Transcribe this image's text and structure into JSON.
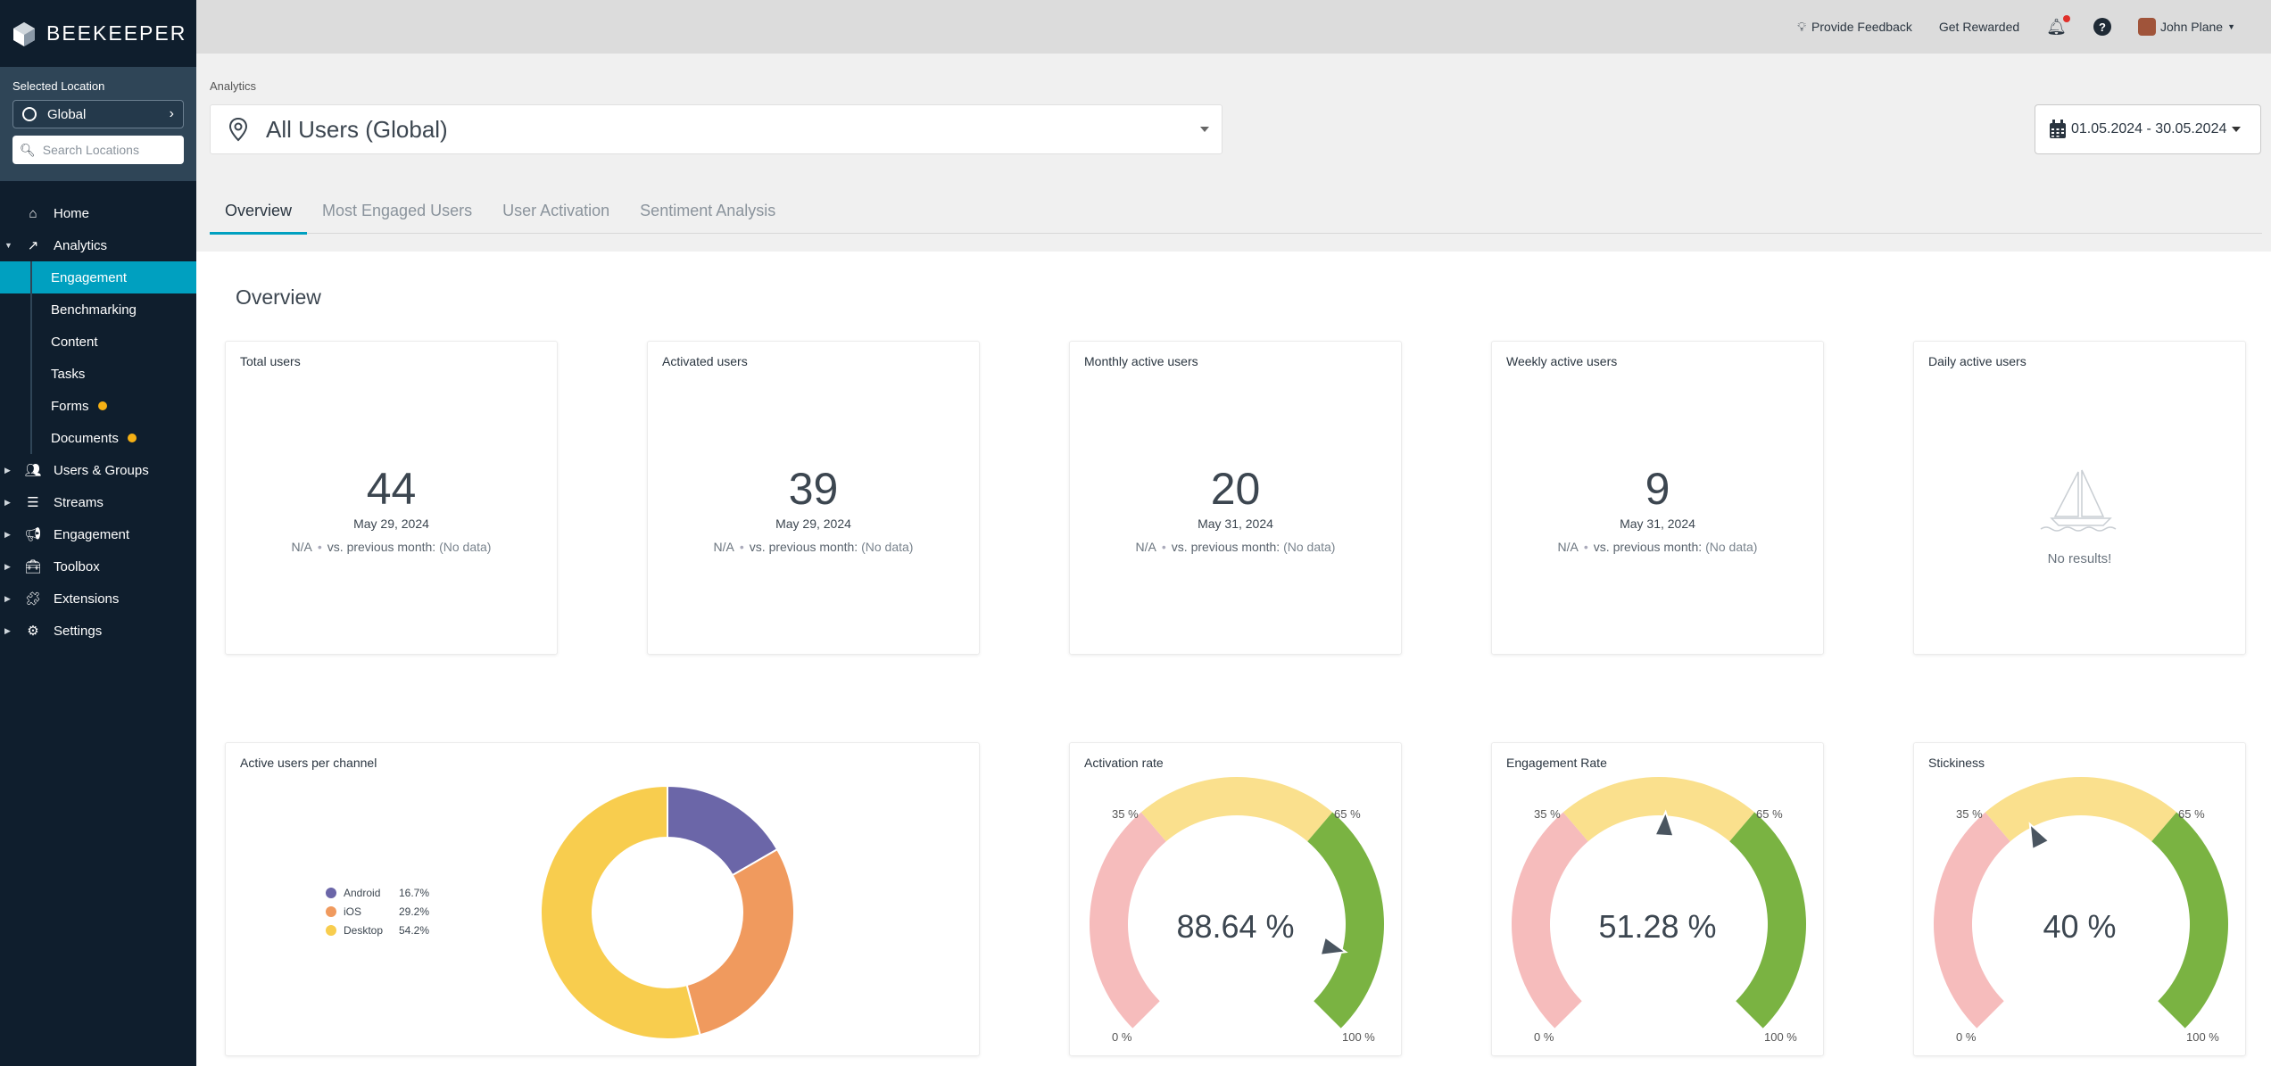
{
  "brand": {
    "name": "BEEKEEPER"
  },
  "location": {
    "label": "Selected Location",
    "current": "Global",
    "search_placeholder": "Search Locations"
  },
  "nav": {
    "home": "Home",
    "analytics": "Analytics",
    "analytics_sub": [
      "Engagement",
      "Benchmarking",
      "Content",
      "Tasks",
      "Forms",
      "Documents"
    ],
    "users_groups": "Users & Groups",
    "streams": "Streams",
    "engagement": "Engagement",
    "toolbox": "Toolbox",
    "extensions": "Extensions",
    "settings": "Settings"
  },
  "topbar": {
    "feedback": "Provide Feedback",
    "rewarded": "Get Rewarded",
    "user": "John Plane"
  },
  "header": {
    "breadcrumb": "Analytics",
    "selector": "All Users (Global)",
    "date_range": "01.05.2024 - 30.05.2024"
  },
  "tabs": [
    "Overview",
    "Most Engaged Users",
    "User Activation",
    "Sentiment Analysis"
  ],
  "overview": {
    "title": "Overview",
    "na": "N/A",
    "vs_prev": "vs. previous month:",
    "no_data": "(No data)",
    "cards": [
      {
        "title": "Total users",
        "value": "44",
        "date": "May 29, 2024"
      },
      {
        "title": "Activated users",
        "value": "39",
        "date": "May 29, 2024"
      },
      {
        "title": "Monthly active users",
        "value": "20",
        "date": "May 31, 2024"
      },
      {
        "title": "Weekly active users",
        "value": "9",
        "date": "May 31, 2024"
      }
    ],
    "daily": {
      "title": "Daily active users",
      "empty": "No results!"
    }
  },
  "colors": {
    "accent": "#00a0c0",
    "android": "#6b66a8",
    "ios": "#f09a5e",
    "desktop": "#f8cd4e",
    "gauge_low": "#f6bcbc",
    "gauge_mid": "#fae08d",
    "gauge_high": "#7ab342"
  },
  "channel": {
    "title": "Active users per channel",
    "items": [
      {
        "name": "Android",
        "pct_label": "16.7%",
        "value": 16.7
      },
      {
        "name": "iOS",
        "pct_label": "29.2%",
        "value": 29.2
      },
      {
        "name": "Desktop",
        "pct_label": "54.2%",
        "value": 54.2
      }
    ]
  },
  "gauges": [
    {
      "title": "Activation rate",
      "value": 88.64,
      "label": "88.64 %"
    },
    {
      "title": "Engagement Rate",
      "value": 51.28,
      "label": "51.28 %"
    },
    {
      "title": "Stickiness",
      "value": 40,
      "label": "40 %"
    }
  ],
  "gauge_ticks": {
    "t0": "0 %",
    "t35": "35 %",
    "t65": "65 %",
    "t100": "100 %"
  }
}
